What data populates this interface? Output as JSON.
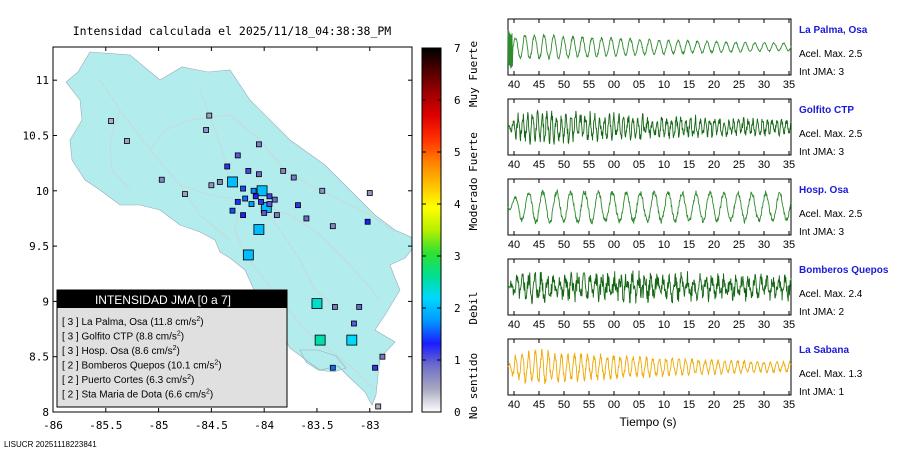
{
  "map": {
    "title": "Intensidad calculada el 2025/11/18_04:38:38_PM",
    "x_ticks": [
      "-86",
      "-85.5",
      "-85",
      "-84.5",
      "-84",
      "-83.5",
      "-83"
    ],
    "y_ticks": [
      "11",
      "10.5",
      "10",
      "9.5",
      "9",
      "8.5",
      "8"
    ],
    "xlim": [
      -86.0,
      -82.6
    ],
    "ylim": [
      8.0,
      11.3
    ],
    "land_color": "#b3eced",
    "stations": [
      {
        "lon": -84.3,
        "lat": 10.08,
        "level": 2,
        "big": true
      },
      {
        "lon": -84.02,
        "lat": 10.0,
        "level": 2,
        "big": true
      },
      {
        "lon": -84.05,
        "lat": 9.65,
        "level": 2,
        "big": true
      },
      {
        "lon": -84.15,
        "lat": 9.42,
        "level": 2,
        "big": true
      },
      {
        "lon": -83.98,
        "lat": 9.85,
        "level": 2,
        "big": true
      },
      {
        "lon": -83.5,
        "lat": 8.98,
        "level": 2.4,
        "big": true
      },
      {
        "lon": -83.47,
        "lat": 8.65,
        "level": 2.5,
        "big": true
      },
      {
        "lon": -83.17,
        "lat": 8.65,
        "level": 2.2,
        "big": true
      },
      {
        "lon": -84.52,
        "lat": 10.68,
        "level": 0.5
      },
      {
        "lon": -84.55,
        "lat": 10.55,
        "level": 0.6
      },
      {
        "lon": -84.05,
        "lat": 10.42,
        "level": 0.8
      },
      {
        "lon": -84.25,
        "lat": 10.32,
        "level": 1.0
      },
      {
        "lon": -84.35,
        "lat": 10.22,
        "level": 1.2
      },
      {
        "lon": -84.15,
        "lat": 10.18,
        "level": 1.1
      },
      {
        "lon": -84.05,
        "lat": 10.15,
        "level": 0.9
      },
      {
        "lon": -83.82,
        "lat": 10.18,
        "level": 0.7
      },
      {
        "lon": -83.72,
        "lat": 10.12,
        "level": 0.8
      },
      {
        "lon": -84.5,
        "lat": 10.05,
        "level": 0.6
      },
      {
        "lon": -84.42,
        "lat": 10.08,
        "level": 0.7
      },
      {
        "lon": -84.2,
        "lat": 10.02,
        "level": 1.5
      },
      {
        "lon": -84.1,
        "lat": 10.0,
        "level": 1.7
      },
      {
        "lon": -84.08,
        "lat": 9.95,
        "level": 1.3
      },
      {
        "lon": -83.95,
        "lat": 9.95,
        "level": 1.1
      },
      {
        "lon": -83.9,
        "lat": 9.92,
        "level": 0.9
      },
      {
        "lon": -84.18,
        "lat": 9.93,
        "level": 1.6
      },
      {
        "lon": -84.25,
        "lat": 9.9,
        "level": 1.4
      },
      {
        "lon": -84.12,
        "lat": 9.88,
        "level": 1.8
      },
      {
        "lon": -84.03,
        "lat": 9.9,
        "level": 1.2
      },
      {
        "lon": -83.95,
        "lat": 9.88,
        "level": 1.0
      },
      {
        "lon": -84.3,
        "lat": 9.82,
        "level": 1.5
      },
      {
        "lon": -84.2,
        "lat": 9.78,
        "level": 1.3
      },
      {
        "lon": -84.0,
        "lat": 9.8,
        "level": 1.0
      },
      {
        "lon": -83.88,
        "lat": 9.78,
        "level": 0.8
      },
      {
        "lon": -83.68,
        "lat": 9.87,
        "level": 1.2
      },
      {
        "lon": -83.6,
        "lat": 9.75,
        "level": 0.9
      },
      {
        "lon": -83.45,
        "lat": 10.0,
        "level": 0.6
      },
      {
        "lon": -83.35,
        "lat": 9.68,
        "level": 0.7
      },
      {
        "lon": -83.0,
        "lat": 9.98,
        "level": 0.6
      },
      {
        "lon": -83.02,
        "lat": 9.72,
        "level": 1.3
      },
      {
        "lon": -84.75,
        "lat": 9.97,
        "level": 0.5
      },
      {
        "lon": -85.45,
        "lat": 10.63,
        "level": 0.4
      },
      {
        "lon": -85.3,
        "lat": 10.45,
        "level": 0.5
      },
      {
        "lon": -84.97,
        "lat": 10.1,
        "level": 0.7
      },
      {
        "lon": -83.33,
        "lat": 8.95,
        "level": 0.8
      },
      {
        "lon": -83.15,
        "lat": 8.8,
        "level": 1.0
      },
      {
        "lon": -83.1,
        "lat": 8.95,
        "level": 0.9
      },
      {
        "lon": -82.88,
        "lat": 8.5,
        "level": 0.8
      },
      {
        "lon": -83.35,
        "lat": 8.4,
        "level": 1.6
      },
      {
        "lon": -82.95,
        "lat": 8.4,
        "level": 1.2
      },
      {
        "lon": -82.92,
        "lat": 8.05,
        "level": 0.4
      }
    ]
  },
  "legend": {
    "title": "INTENSIDAD JMA [0 a 7]",
    "rows": [
      {
        "level": "3",
        "name": "La Palma, Osa",
        "value": "11.8"
      },
      {
        "level": "3",
        "name": "Golfito CTP",
        "value": "8.8"
      },
      {
        "level": "3",
        "name": "Hosp. Osa",
        "value": "8.6"
      },
      {
        "level": "2",
        "name": "Bomberos Quepos",
        "value": "10.1"
      },
      {
        "level": "2",
        "name": "Puerto Cortes",
        "value": "6.3"
      },
      {
        "level": "2",
        "name": "Sta Maria de Dota",
        "value": "6.6"
      }
    ],
    "unit_base": "cm/s",
    "unit_sup": "2"
  },
  "colorbar": {
    "ticks": [
      "0",
      "1",
      "2",
      "3",
      "4",
      "5",
      "6",
      "7"
    ],
    "range": [
      0,
      7
    ],
    "labels": [
      "No sentido",
      "Debil",
      "Moderado",
      "Fuerte",
      "Muy Fuerte"
    ],
    "label_levels": [
      0.5,
      2.0,
      4.0,
      5.0,
      6.5
    ],
    "colors": [
      "#ffffff",
      "#a8a8c0",
      "#7070c8",
      "#1c1cff",
      "#0098ff",
      "#00d8ff",
      "#00e090",
      "#30e030",
      "#b8f000",
      "#ffff00",
      "#ffc000",
      "#ff8000",
      "#ff3000",
      "#e00000",
      "#a00000",
      "#500000",
      "#000000"
    ]
  },
  "waveforms": {
    "x_ticks": [
      "40",
      "45",
      "50",
      "55",
      "00",
      "05",
      "10",
      "15",
      "20",
      "25",
      "30",
      "35"
    ],
    "xlabel": "Tiempo (s)",
    "panels": [
      {
        "name": "La Palma, Osa",
        "acel": "Acel. Max. 2.5",
        "int": "Int JMA: 3",
        "color": "#2e8b2e",
        "amp": 0.5,
        "period": 2.2,
        "decay": 0.45,
        "noise": 0.15,
        "seed": 3,
        "lead": 1.5
      },
      {
        "name": "Golfito CTP",
        "acel": "Acel. Max. 2.5",
        "int": "Int JMA: 3",
        "color": "#146614",
        "amp": 0.45,
        "period": 1.1,
        "decay": 0.25,
        "noise": 0.55,
        "seed": 7,
        "lead": 0.0
      },
      {
        "name": "Hosp. Osa",
        "acel": "Acel. Max. 2.5",
        "int": "Int JMA: 3",
        "color": "#2e8b2e",
        "amp": 0.55,
        "period": 3.2,
        "decay": 0.05,
        "noise": 0.2,
        "seed": 11,
        "lead": 0.0
      },
      {
        "name": "Bomberos Quepos",
        "acel": "Acel. Max. 2.4",
        "int": "Int JMA: 2",
        "color": "#146614",
        "amp": 0.35,
        "period": 1.4,
        "decay": 0.1,
        "noise": 0.7,
        "seed": 5,
        "lead": 0.0
      },
      {
        "name": "La Sabana",
        "acel": "Acel. Max. 1.3",
        "int": "Int JMA: 1",
        "color": "#f0a800",
        "amp": 0.6,
        "period": 1.5,
        "decay": 0.45,
        "noise": 0.35,
        "seed": 13,
        "lead": 0.0
      }
    ]
  },
  "footer": {
    "code": "LISUCR 20251118223841"
  }
}
